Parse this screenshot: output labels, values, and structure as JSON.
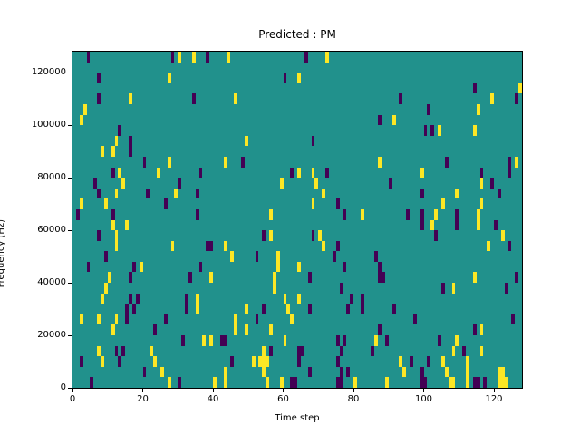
{
  "figure": {
    "background": "#ffffff",
    "text_color": "#000000"
  },
  "chart_data": {
    "type": "heatmap",
    "title": "Predicted : PM",
    "xlabel": "Time step",
    "ylabel": "Frequency (Hz)",
    "x_range": [
      0,
      128
    ],
    "y_range": [
      0,
      128000
    ],
    "x_ticks": [
      0,
      20,
      40,
      60,
      80,
      100,
      120
    ],
    "y_ticks": [
      0,
      20000,
      40000,
      60000,
      80000,
      100000,
      120000
    ],
    "grid_cols": 128,
    "grid_rows": 32,
    "background_color": "#21918c",
    "colors": {
      "p": "#440154",
      "y": "#fde725"
    },
    "cells": [
      [
        4,
        31,
        "p"
      ],
      [
        28,
        31,
        "p"
      ],
      [
        30,
        31,
        "y"
      ],
      [
        34,
        31,
        "y"
      ],
      [
        38,
        31,
        "p"
      ],
      [
        44,
        31,
        "y"
      ],
      [
        66,
        31,
        "p"
      ],
      [
        72,
        31,
        "y"
      ],
      [
        7,
        29,
        "p"
      ],
      [
        27,
        29,
        "y"
      ],
      [
        60,
        29,
        "p"
      ],
      [
        64,
        29,
        "y"
      ],
      [
        114,
        28,
        "p"
      ],
      [
        127,
        28,
        "y"
      ],
      [
        7,
        27,
        "p"
      ],
      [
        16,
        27,
        "y"
      ],
      [
        34,
        27,
        "p"
      ],
      [
        46,
        27,
        "y"
      ],
      [
        93,
        27,
        "p"
      ],
      [
        119,
        27,
        "y"
      ],
      [
        126,
        27,
        "p"
      ],
      [
        3,
        26,
        "y"
      ],
      [
        101,
        26,
        "p"
      ],
      [
        115,
        26,
        "y"
      ],
      [
        2,
        25,
        "y"
      ],
      [
        87,
        25,
        "p"
      ],
      [
        91,
        25,
        "y"
      ],
      [
        13,
        24,
        "p"
      ],
      [
        100,
        24,
        "p"
      ],
      [
        102,
        24,
        "p"
      ],
      [
        104,
        24,
        "y"
      ],
      [
        114,
        24,
        "y"
      ],
      [
        12,
        23,
        "y"
      ],
      [
        16,
        23,
        "p"
      ],
      [
        49,
        23,
        "y"
      ],
      [
        68,
        23,
        "p"
      ],
      [
        8,
        22,
        "y"
      ],
      [
        11,
        22,
        "y"
      ],
      [
        16,
        22,
        "p"
      ],
      [
        20,
        21,
        "p"
      ],
      [
        27,
        21,
        "y"
      ],
      [
        43,
        21,
        "y"
      ],
      [
        48,
        21,
        "p"
      ],
      [
        87,
        21,
        "y"
      ],
      [
        106,
        21,
        "p"
      ],
      [
        124,
        21,
        "p"
      ],
      [
        126,
        21,
        "y"
      ],
      [
        11,
        20,
        "p"
      ],
      [
        13,
        20,
        "y"
      ],
      [
        24,
        20,
        "y"
      ],
      [
        36,
        20,
        "p"
      ],
      [
        62,
        20,
        "p"
      ],
      [
        64,
        20,
        "y"
      ],
      [
        68,
        20,
        "y"
      ],
      [
        72,
        20,
        "p"
      ],
      [
        99,
        20,
        "y"
      ],
      [
        116,
        20,
        "p"
      ],
      [
        124,
        20,
        "p"
      ],
      [
        6,
        19,
        "p"
      ],
      [
        14,
        19,
        "y"
      ],
      [
        30,
        19,
        "p"
      ],
      [
        59,
        19,
        "y"
      ],
      [
        69,
        19,
        "y"
      ],
      [
        90,
        19,
        "p"
      ],
      [
        116,
        19,
        "y"
      ],
      [
        119,
        19,
        "p"
      ],
      [
        7,
        18,
        "p"
      ],
      [
        12,
        18,
        "y"
      ],
      [
        21,
        18,
        "p"
      ],
      [
        29,
        18,
        "y"
      ],
      [
        35,
        18,
        "p"
      ],
      [
        71,
        18,
        "y"
      ],
      [
        99,
        18,
        "p"
      ],
      [
        109,
        18,
        "y"
      ],
      [
        121,
        18,
        "p"
      ],
      [
        2,
        17,
        "y"
      ],
      [
        9,
        17,
        "y"
      ],
      [
        26,
        17,
        "p"
      ],
      [
        68,
        17,
        "y"
      ],
      [
        75,
        17,
        "p"
      ],
      [
        105,
        17,
        "y"
      ],
      [
        116,
        17,
        "y"
      ],
      [
        1,
        16,
        "p"
      ],
      [
        11,
        16,
        "p"
      ],
      [
        35,
        16,
        "p"
      ],
      [
        56,
        16,
        "y"
      ],
      [
        77,
        16,
        "p"
      ],
      [
        82,
        16,
        "y"
      ],
      [
        95,
        16,
        "p"
      ],
      [
        99,
        16,
        "p"
      ],
      [
        103,
        16,
        "y"
      ],
      [
        109,
        16,
        "p"
      ],
      [
        115,
        16,
        "y"
      ],
      [
        11,
        15,
        "y"
      ],
      [
        15,
        15,
        "y"
      ],
      [
        99,
        15,
        "p"
      ],
      [
        102,
        15,
        "y"
      ],
      [
        109,
        15,
        "p"
      ],
      [
        115,
        15,
        "y"
      ],
      [
        120,
        15,
        "p"
      ],
      [
        7,
        14,
        "p"
      ],
      [
        12,
        14,
        "y"
      ],
      [
        54,
        14,
        "p"
      ],
      [
        56,
        14,
        "y"
      ],
      [
        68,
        14,
        "p"
      ],
      [
        70,
        14,
        "y"
      ],
      [
        103,
        14,
        "p"
      ],
      [
        122,
        14,
        "y"
      ],
      [
        12,
        13,
        "y"
      ],
      [
        28,
        13,
        "y"
      ],
      [
        38,
        13,
        "p"
      ],
      [
        39,
        13,
        "p"
      ],
      [
        43,
        13,
        "y"
      ],
      [
        71,
        13,
        "y"
      ],
      [
        75,
        13,
        "p"
      ],
      [
        118,
        13,
        "y"
      ],
      [
        124,
        13,
        "p"
      ],
      [
        9,
        12,
        "p"
      ],
      [
        45,
        12,
        "y"
      ],
      [
        52,
        12,
        "p"
      ],
      [
        58,
        12,
        "y"
      ],
      [
        74,
        12,
        "p"
      ],
      [
        86,
        12,
        "p"
      ],
      [
        4,
        11,
        "p"
      ],
      [
        17,
        11,
        "p"
      ],
      [
        19,
        11,
        "y"
      ],
      [
        36,
        11,
        "p"
      ],
      [
        58,
        11,
        "y"
      ],
      [
        64,
        11,
        "y"
      ],
      [
        77,
        11,
        "p"
      ],
      [
        87,
        11,
        "p"
      ],
      [
        10,
        10,
        "y"
      ],
      [
        16,
        10,
        "p"
      ],
      [
        33,
        10,
        "p"
      ],
      [
        39,
        10,
        "y"
      ],
      [
        57,
        10,
        "y"
      ],
      [
        67,
        10,
        "p"
      ],
      [
        87,
        10,
        "p"
      ],
      [
        88,
        10,
        "p"
      ],
      [
        114,
        10,
        "y"
      ],
      [
        126,
        10,
        "p"
      ],
      [
        9,
        9,
        "y"
      ],
      [
        57,
        9,
        "y"
      ],
      [
        76,
        9,
        "p"
      ],
      [
        105,
        9,
        "p"
      ],
      [
        108,
        9,
        "y"
      ],
      [
        123,
        9,
        "p"
      ],
      [
        8,
        8,
        "y"
      ],
      [
        16,
        8,
        "p"
      ],
      [
        18,
        8,
        "p"
      ],
      [
        32,
        8,
        "p"
      ],
      [
        35,
        8,
        "y"
      ],
      [
        60,
        8,
        "y"
      ],
      [
        64,
        8,
        "y"
      ],
      [
        79,
        8,
        "p"
      ],
      [
        82,
        8,
        "p"
      ],
      [
        15,
        7,
        "p"
      ],
      [
        17,
        7,
        "p"
      ],
      [
        32,
        7,
        "p"
      ],
      [
        35,
        7,
        "y"
      ],
      [
        49,
        7,
        "y"
      ],
      [
        54,
        7,
        "p"
      ],
      [
        61,
        7,
        "y"
      ],
      [
        67,
        7,
        "p"
      ],
      [
        78,
        7,
        "p"
      ],
      [
        82,
        7,
        "p"
      ],
      [
        91,
        7,
        "p"
      ],
      [
        2,
        6,
        "y"
      ],
      [
        7,
        6,
        "y"
      ],
      [
        12,
        6,
        "y"
      ],
      [
        15,
        6,
        "p"
      ],
      [
        26,
        6,
        "p"
      ],
      [
        46,
        6,
        "y"
      ],
      [
        52,
        6,
        "p"
      ],
      [
        62,
        6,
        "y"
      ],
      [
        97,
        6,
        "p"
      ],
      [
        125,
        6,
        "p"
      ],
      [
        11,
        5,
        "y"
      ],
      [
        23,
        5,
        "p"
      ],
      [
        46,
        5,
        "y"
      ],
      [
        49,
        5,
        "y"
      ],
      [
        56,
        5,
        "y"
      ],
      [
        87,
        5,
        "p"
      ],
      [
        114,
        5,
        "p"
      ],
      [
        116,
        5,
        "y"
      ],
      [
        31,
        4,
        "p"
      ],
      [
        37,
        4,
        "y"
      ],
      [
        39,
        4,
        "y"
      ],
      [
        42,
        4,
        "p"
      ],
      [
        43,
        4,
        "p"
      ],
      [
        60,
        4,
        "y"
      ],
      [
        75,
        4,
        "p"
      ],
      [
        77,
        4,
        "p"
      ],
      [
        86,
        4,
        "y"
      ],
      [
        89,
        4,
        "p"
      ],
      [
        104,
        4,
        "p"
      ],
      [
        109,
        4,
        "y"
      ],
      [
        7,
        3,
        "y"
      ],
      [
        12,
        3,
        "p"
      ],
      [
        14,
        3,
        "p"
      ],
      [
        22,
        3,
        "y"
      ],
      [
        54,
        3,
        "y"
      ],
      [
        56,
        3,
        "p"
      ],
      [
        64,
        3,
        "p"
      ],
      [
        65,
        3,
        "p"
      ],
      [
        76,
        3,
        "p"
      ],
      [
        85,
        3,
        "p"
      ],
      [
        108,
        3,
        "y"
      ],
      [
        111,
        3,
        "p"
      ],
      [
        116,
        3,
        "y"
      ],
      [
        2,
        2,
        "p"
      ],
      [
        8,
        2,
        "y"
      ],
      [
        13,
        2,
        "p"
      ],
      [
        23,
        2,
        "y"
      ],
      [
        45,
        2,
        "p"
      ],
      [
        51,
        2,
        "y"
      ],
      [
        53,
        2,
        "y"
      ],
      [
        54,
        2,
        "y"
      ],
      [
        55,
        2,
        "y"
      ],
      [
        64,
        2,
        "p"
      ],
      [
        75,
        2,
        "p"
      ],
      [
        93,
        2,
        "y"
      ],
      [
        96,
        2,
        "p"
      ],
      [
        101,
        2,
        "p"
      ],
      [
        105,
        2,
        "y"
      ],
      [
        112,
        2,
        "y"
      ],
      [
        20,
        1,
        "p"
      ],
      [
        25,
        1,
        "y"
      ],
      [
        43,
        1,
        "y"
      ],
      [
        54,
        1,
        "y"
      ],
      [
        67,
        1,
        "p"
      ],
      [
        76,
        1,
        "p"
      ],
      [
        78,
        1,
        "p"
      ],
      [
        94,
        1,
        "y"
      ],
      [
        99,
        1,
        "p"
      ],
      [
        106,
        1,
        "y"
      ],
      [
        112,
        1,
        "y"
      ],
      [
        121,
        1,
        "y"
      ],
      [
        122,
        1,
        "y"
      ],
      [
        5,
        0,
        "p"
      ],
      [
        27,
        0,
        "y"
      ],
      [
        30,
        0,
        "p"
      ],
      [
        40,
        0,
        "y"
      ],
      [
        43,
        0,
        "y"
      ],
      [
        55,
        0,
        "y"
      ],
      [
        59,
        0,
        "y"
      ],
      [
        62,
        0,
        "p"
      ],
      [
        63,
        0,
        "p"
      ],
      [
        75,
        0,
        "p"
      ],
      [
        76,
        0,
        "p"
      ],
      [
        80,
        0,
        "y"
      ],
      [
        89,
        0,
        "y"
      ],
      [
        99,
        0,
        "p"
      ],
      [
        100,
        0,
        "p"
      ],
      [
        107,
        0,
        "y"
      ],
      [
        108,
        0,
        "y"
      ],
      [
        112,
        0,
        "y"
      ],
      [
        114,
        0,
        "p"
      ],
      [
        115,
        0,
        "p"
      ],
      [
        117,
        0,
        "p"
      ],
      [
        121,
        0,
        "y"
      ],
      [
        122,
        0,
        "y"
      ],
      [
        123,
        0,
        "y"
      ]
    ]
  }
}
